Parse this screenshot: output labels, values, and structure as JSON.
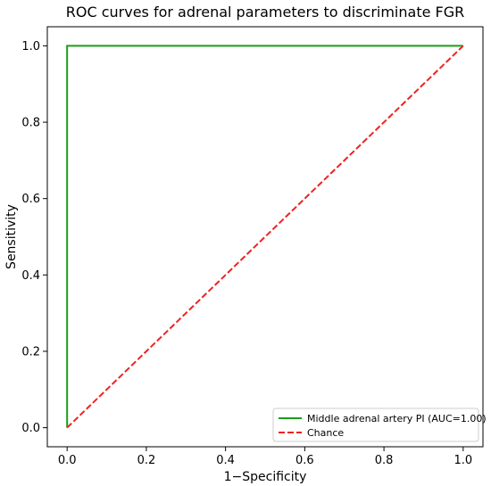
{
  "chart_data": {
    "type": "line",
    "title": "ROC curves for adrenal parameters to discriminate FGR",
    "xlabel": "1−Specificity",
    "ylabel": "Sensitivity",
    "xlim": [
      -0.05,
      1.05
    ],
    "ylim": [
      -0.05,
      1.05
    ],
    "xticks": [
      "0.0",
      "0.2",
      "0.4",
      "0.6",
      "0.8",
      "1.0"
    ],
    "yticks": [
      "0.0",
      "0.2",
      "0.4",
      "0.6",
      "0.8",
      "1.0"
    ],
    "grid": false,
    "legend_position": "lower-right",
    "series": [
      {
        "name": "Middle adrenal artery PI (AUC=1.00)",
        "color": "#1a9e1a",
        "style": "solid",
        "x": [
          0.0,
          0.0,
          1.0
        ],
        "y": [
          0.0,
          1.0,
          1.0
        ]
      },
      {
        "name": "Chance",
        "color": "#ee2222",
        "style": "dashed",
        "x": [
          0.0,
          1.0
        ],
        "y": [
          0.0,
          1.0
        ]
      }
    ]
  }
}
